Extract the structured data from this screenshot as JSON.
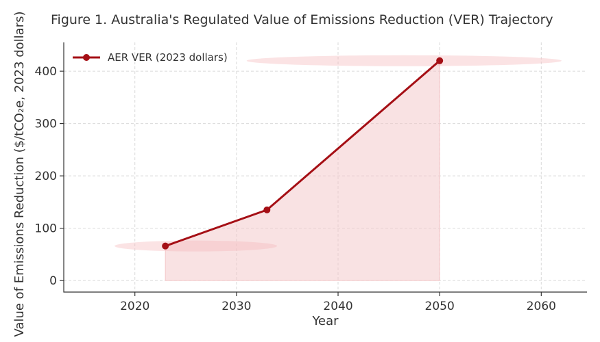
{
  "chart_data": {
    "type": "line",
    "title": "Figure 1. Australia's Regulated Value of Emissions Reduction (VER) Trajectory",
    "xlabel": "Year",
    "ylabel": "Value of Emissions Reduction ($/tCO₂e, 2023 dollars)",
    "xlim": [
      2013,
      2064.5
    ],
    "ylim": [
      -22,
      455
    ],
    "x_ticks": [
      2020,
      2030,
      2040,
      2050,
      2060
    ],
    "y_ticks": [
      0,
      100,
      200,
      300,
      400
    ],
    "grid": true,
    "legend_position": "top-left",
    "colors": {
      "line": "#a50f15",
      "fill": "#f4c6c8",
      "glow": "#f4b9bc"
    },
    "series": [
      {
        "name": "AER VER (2023 dollars)",
        "x": [
          2023,
          2033,
          2050
        ],
        "y": [
          66,
          135,
          420
        ]
      }
    ],
    "highlights": [
      {
        "x_start": 2018,
        "x_end": 2034,
        "y": 66
      },
      {
        "x_start": 2031,
        "x_end": 2062,
        "y": 420
      }
    ]
  }
}
